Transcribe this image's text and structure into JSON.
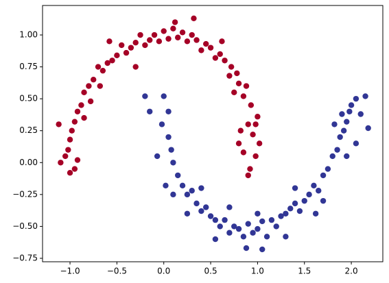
{
  "chart_data": {
    "type": "scatter",
    "xlim": [
      -1.293,
      2.336
    ],
    "ylim": [
      -0.777,
      1.231
    ],
    "xticks": [
      {
        "value": -1,
        "label": "−1.0"
      },
      {
        "value": -0.5,
        "label": "−0.5"
      },
      {
        "value": 0,
        "label": "0.0"
      },
      {
        "value": 0.5,
        "label": "0.5"
      },
      {
        "value": 1,
        "label": "1.0"
      },
      {
        "value": 1.5,
        "label": "1.5"
      },
      {
        "value": 2,
        "label": "2.0"
      }
    ],
    "yticks": [
      {
        "value": -0.75,
        "label": "−0.75"
      },
      {
        "value": -0.5,
        "label": "−0.50"
      },
      {
        "value": -0.25,
        "label": "−0.25"
      },
      {
        "value": 0,
        "label": "0.00"
      },
      {
        "value": 0.25,
        "label": "0.25"
      },
      {
        "value": 0.5,
        "label": "0.50"
      },
      {
        "value": 0.75,
        "label": "0.75"
      },
      {
        "value": 1,
        "label": "1.00"
      }
    ],
    "grid": false,
    "series": [
      {
        "color": "#a50026",
        "x": [
          0.98,
          1.02,
          0.95,
          0.9,
          1.0,
          0.93,
          0.85,
          0.88,
          0.8,
          0.78,
          0.72,
          0.7,
          0.65,
          0.6,
          0.55,
          0.5,
          0.45,
          0.4,
          0.35,
          0.3,
          0.25,
          0.2,
          0.15,
          0.1,
          0.05,
          0.0,
          -0.05,
          -0.1,
          -0.15,
          -0.2,
          -0.25,
          -0.3,
          -0.35,
          -0.4,
          -0.45,
          -0.5,
          -0.55,
          -0.6,
          -0.65,
          -0.7,
          -0.75,
          -0.8,
          -0.85,
          -0.88,
          -0.92,
          -0.95,
          -0.98,
          -1.0,
          -1.02,
          -1.05,
          -1.1,
          -0.95,
          -1.0,
          -0.92,
          -0.85,
          -0.78,
          -0.68,
          0.32,
          0.12,
          -0.58,
          0.82,
          0.85,
          0.9,
          0.8,
          0.75,
          -1.12,
          0.62,
          -0.3,
          0.92,
          0.98
        ],
        "values": [
          0.05,
          0.15,
          0.22,
          0.3,
          0.36,
          0.45,
          0.52,
          0.6,
          0.62,
          0.7,
          0.75,
          0.68,
          0.8,
          0.85,
          0.82,
          0.9,
          0.93,
          0.88,
          0.96,
          1.0,
          0.95,
          1.02,
          0.98,
          1.05,
          0.97,
          1.03,
          0.95,
          1.0,
          0.96,
          0.92,
          1.0,
          0.94,
          0.9,
          0.86,
          0.92,
          0.84,
          0.8,
          0.78,
          0.72,
          0.75,
          0.65,
          0.6,
          0.55,
          0.45,
          0.4,
          0.32,
          0.25,
          0.18,
          0.1,
          0.05,
          0.0,
          -0.05,
          -0.08,
          0.02,
          0.35,
          0.48,
          0.6,
          1.13,
          1.1,
          0.95,
          0.25,
          0.08,
          -0.1,
          0.15,
          0.55,
          0.3,
          0.95,
          0.75,
          -0.05,
          0.3
        ]
      },
      {
        "color": "#313695",
        "x": [
          0.0,
          -0.2,
          0.05,
          -0.02,
          0.05,
          0.08,
          0.1,
          0.15,
          0.2,
          0.25,
          0.3,
          0.35,
          0.4,
          0.45,
          0.5,
          0.55,
          0.6,
          0.65,
          0.7,
          0.75,
          0.8,
          0.85,
          0.9,
          0.95,
          1.0,
          1.05,
          1.1,
          1.15,
          1.2,
          1.25,
          1.3,
          1.35,
          1.4,
          1.45,
          1.5,
          1.55,
          1.6,
          1.65,
          1.7,
          1.75,
          1.8,
          1.85,
          1.88,
          1.92,
          1.95,
          1.98,
          2.0,
          2.05,
          2.1,
          2.15,
          2.18,
          1.9,
          1.82,
          0.1,
          0.25,
          0.55,
          0.88,
          1.05,
          1.3,
          1.62,
          -0.15,
          -0.07,
          0.4,
          0.7,
          1.0,
          1.4,
          1.7,
          2.05,
          0.02,
          1.95
        ],
        "values": [
          0.52,
          0.52,
          0.4,
          0.3,
          0.2,
          0.1,
          0.0,
          -0.1,
          -0.18,
          -0.25,
          -0.22,
          -0.32,
          -0.38,
          -0.35,
          -0.42,
          -0.45,
          -0.5,
          -0.45,
          -0.55,
          -0.5,
          -0.52,
          -0.58,
          -0.48,
          -0.55,
          -0.52,
          -0.46,
          -0.58,
          -0.45,
          -0.5,
          -0.42,
          -0.4,
          -0.36,
          -0.32,
          -0.38,
          -0.3,
          -0.25,
          -0.18,
          -0.22,
          -0.1,
          -0.05,
          0.05,
          0.1,
          0.2,
          0.25,
          0.32,
          0.4,
          0.45,
          0.5,
          0.38,
          0.52,
          0.27,
          0.38,
          0.3,
          -0.25,
          -0.4,
          -0.6,
          -0.67,
          -0.68,
          -0.58,
          -0.4,
          0.4,
          0.05,
          -0.2,
          -0.35,
          -0.4,
          -0.2,
          -0.3,
          0.15,
          -0.18,
          0.05
        ]
      }
    ]
  }
}
